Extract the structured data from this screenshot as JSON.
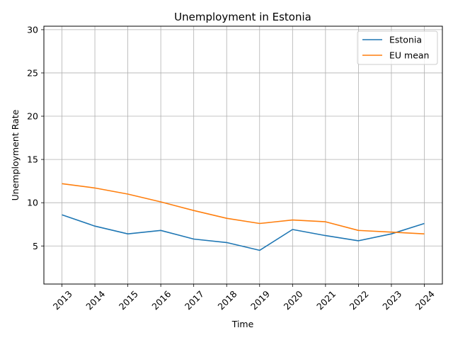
{
  "chart_data": {
    "type": "line",
    "title": "Unemployment in Estonia",
    "xlabel": "Time",
    "ylabel": "Unemployment Rate",
    "x": [
      "2013",
      "2014",
      "2015",
      "2016",
      "2017",
      "2018",
      "2019",
      "2020",
      "2021",
      "2022",
      "2023",
      "2024"
    ],
    "yticks": [
      5,
      10,
      15,
      20,
      25,
      30
    ],
    "ylim": [
      0.6,
      30.4
    ],
    "grid": true,
    "legend_position": "top-right",
    "series": [
      {
        "name": "Estonia",
        "color": "#1f77b4",
        "values": [
          8.6,
          7.3,
          6.4,
          6.8,
          5.8,
          5.4,
          4.5,
          6.9,
          6.2,
          5.6,
          6.4,
          7.6
        ]
      },
      {
        "name": "EU mean",
        "color": "#ff7f0e",
        "values": [
          12.2,
          11.7,
          11.0,
          10.1,
          9.1,
          8.2,
          7.6,
          8.0,
          7.8,
          6.8,
          6.6,
          6.4
        ]
      }
    ]
  }
}
